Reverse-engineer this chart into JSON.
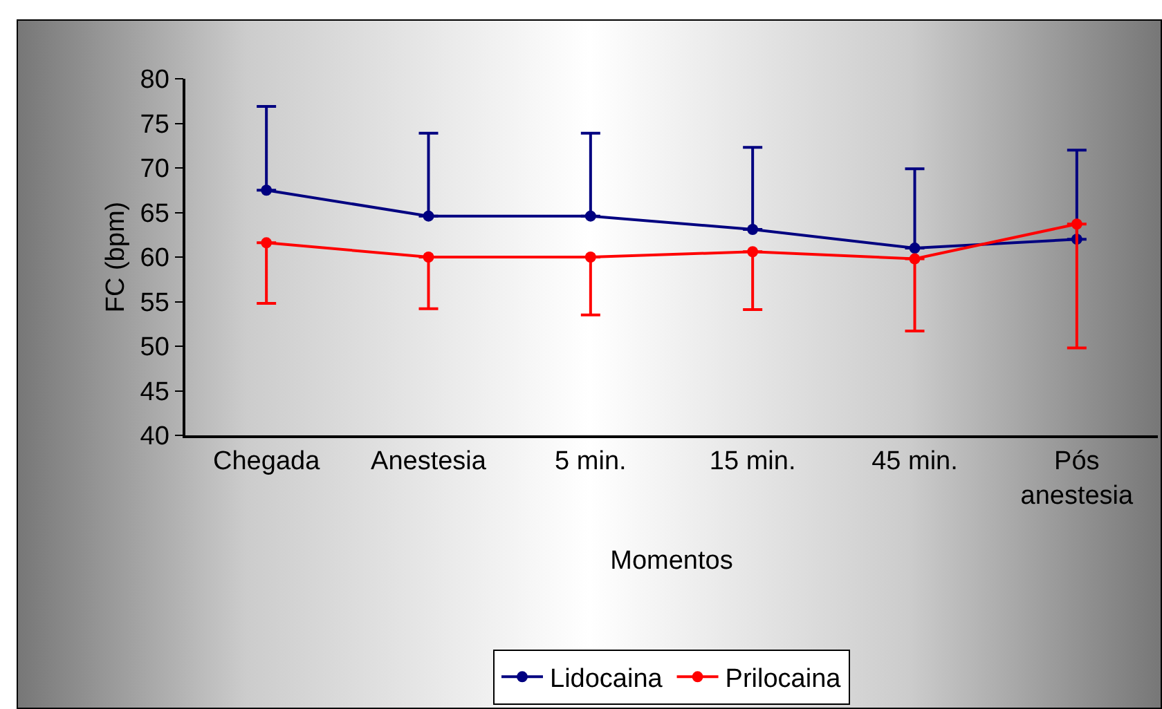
{
  "chart_data": {
    "type": "line",
    "xlabel": "Momentos",
    "ylabel": "FC (bpm)",
    "categories": [
      "Chegada",
      "Anestesia",
      "5 min.",
      "15 min.",
      "45 min.",
      "Pós anestesia"
    ],
    "series": [
      {
        "name": "Lidocaina",
        "color": "#000080",
        "values": [
          67.5,
          64.6,
          64.6,
          63.1,
          61.0,
          62.0
        ],
        "errors": [
          [
            67.5,
            76.9
          ],
          [
            64.6,
            73.9
          ],
          [
            64.6,
            73.9
          ],
          [
            63.1,
            72.3
          ],
          [
            61.0,
            69.9
          ],
          [
            62.0,
            72.0
          ]
        ]
      },
      {
        "name": "Prilocaina",
        "color": "#ff0000",
        "values": [
          61.6,
          60.0,
          60.0,
          60.6,
          59.8,
          63.7
        ],
        "errors": [
          [
            54.8,
            61.6
          ],
          [
            54.2,
            60.0
          ],
          [
            53.5,
            60.0
          ],
          [
            54.1,
            60.6
          ],
          [
            51.7,
            59.8
          ],
          [
            49.8,
            63.7
          ]
        ]
      }
    ],
    "ylim": [
      40,
      80
    ],
    "yticks": [
      40,
      45,
      50,
      55,
      60,
      65,
      70,
      75,
      80
    ],
    "grid": false,
    "legend": "bottom",
    "marker": "circle",
    "line_style": "solid"
  }
}
